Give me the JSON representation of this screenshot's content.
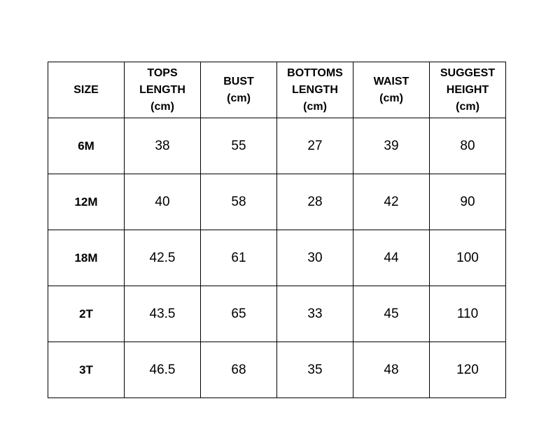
{
  "table": {
    "headers": [
      {
        "lines": [
          "SIZE"
        ]
      },
      {
        "lines": [
          "TOPS",
          "LENGTH",
          "(cm)"
        ]
      },
      {
        "lines": [
          "BUST",
          "(cm)"
        ]
      },
      {
        "lines": [
          "BOTTOMS",
          "LENGTH",
          "(cm)"
        ]
      },
      {
        "lines": [
          "WAIST",
          "(cm)"
        ]
      },
      {
        "lines": [
          "SUGGEST",
          "HEIGHT",
          "(cm)"
        ]
      }
    ],
    "rows": [
      [
        "6M",
        "38",
        "55",
        "27",
        "39",
        "80"
      ],
      [
        "12M",
        "40",
        "58",
        "28",
        "42",
        "90"
      ],
      [
        "18M",
        "42.5",
        "61",
        "30",
        "44",
        "100"
      ],
      [
        "2T",
        "43.5",
        "65",
        "33",
        "45",
        "110"
      ],
      [
        "3T",
        "46.5",
        "68",
        "35",
        "48",
        "120"
      ]
    ]
  }
}
